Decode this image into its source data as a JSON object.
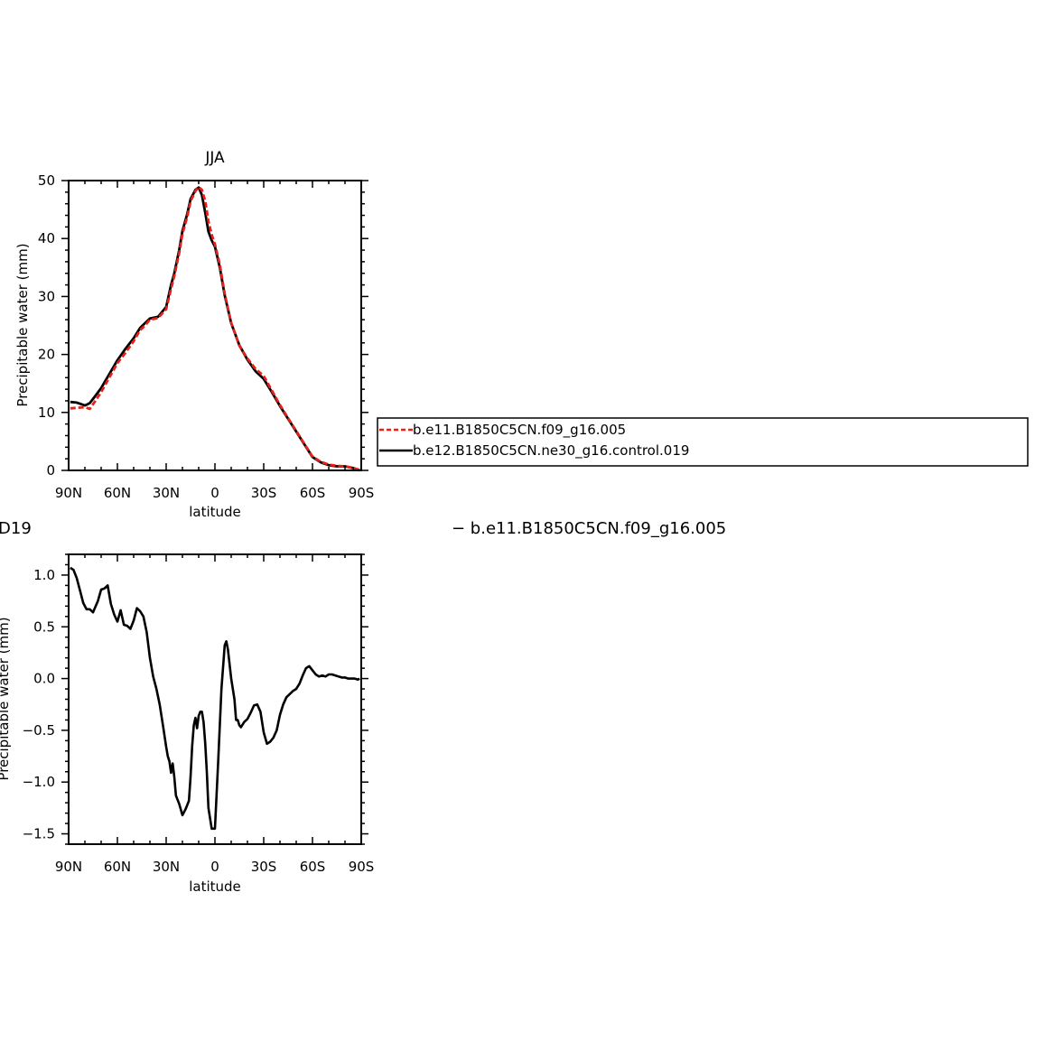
{
  "chart_data": [
    {
      "type": "line",
      "title": "JJA",
      "xlabel": "latitude",
      "ylabel": "Precipitable water (mm)",
      "xlim": [
        90,
        -90
      ],
      "ylim": [
        0,
        50
      ],
      "x_ticks": [
        90,
        60,
        30,
        0,
        -30,
        -60,
        -90
      ],
      "x_tick_labels": [
        "90N",
        "60N",
        "30N",
        "0",
        "30S",
        "60S",
        "90S"
      ],
      "y_ticks": [
        0,
        10,
        20,
        30,
        40,
        50
      ],
      "y_tick_labels": [
        "0",
        "10",
        "20",
        "30",
        "40",
        "50"
      ],
      "legend": {
        "placement": "right",
        "entries": [
          "b.e11.B1850C5CN.f09_g16.005",
          "b.e12.B1850C5CN.ne30_g16.control.019"
        ]
      },
      "series": [
        {
          "name": "b.e11.B1850C5CN.f09_g16.005",
          "color": "#e8201a",
          "dash": "dashed",
          "x": [
            89,
            85,
            80,
            77,
            74,
            70,
            65,
            60,
            55,
            50,
            46,
            43,
            40,
            35,
            30,
            27,
            25,
            22,
            20,
            17,
            15,
            12,
            10,
            8,
            6,
            4,
            2,
            0,
            -3,
            -6,
            -10,
            -15,
            -20,
            -25,
            -30,
            -35,
            -40,
            -45,
            -50,
            -55,
            -60,
            -65,
            -70,
            -75,
            -80,
            -85,
            -89
          ],
          "y": [
            10.7,
            10.8,
            10.9,
            10.6,
            11.8,
            13.5,
            16.0,
            18.5,
            20.3,
            22.3,
            24.2,
            25.0,
            26.0,
            26.3,
            27.8,
            31.3,
            33.5,
            37.5,
            40.8,
            43.8,
            46.4,
            48.2,
            48.9,
            48.4,
            46.5,
            43.0,
            40.7,
            39.0,
            35.5,
            30.5,
            25.5,
            21.5,
            19.3,
            17.5,
            16.3,
            13.8,
            11.3,
            9.0,
            6.8,
            4.6,
            2.4,
            1.5,
            1.0,
            0.8,
            0.7,
            0.4,
            0.1
          ]
        },
        {
          "name": "b.e12.B1850C5CN.ne30_g16.control.019",
          "color": "#000000",
          "dash": "solid",
          "x": [
            89,
            85,
            80,
            77,
            74,
            70,
            65,
            60,
            55,
            50,
            46,
            43,
            40,
            35,
            30,
            27,
            25,
            22,
            20,
            17,
            15,
            12,
            10,
            8,
            6,
            4,
            2,
            0,
            -3,
            -6,
            -10,
            -15,
            -20,
            -25,
            -30,
            -35,
            -40,
            -45,
            -50,
            -55,
            -60,
            -65,
            -70,
            -75,
            -80,
            -85,
            -89
          ],
          "y": [
            11.8,
            11.7,
            11.2,
            11.6,
            12.7,
            14.2,
            16.6,
            19.0,
            21.0,
            22.8,
            24.6,
            25.4,
            26.2,
            26.5,
            28.2,
            32.0,
            34.0,
            38.0,
            41.3,
            44.3,
            46.8,
            48.4,
            48.8,
            47.5,
            44.5,
            41.2,
            39.7,
            38.6,
            35.0,
            30.2,
            25.4,
            21.6,
            19.1,
            17.1,
            15.8,
            13.5,
            11.1,
            8.9,
            6.7,
            4.5,
            2.3,
            1.4,
            0.9,
            0.7,
            0.7,
            0.4,
            0.0
          ]
        }
      ]
    },
    {
      "type": "line",
      "title": "",
      "title_left_fragment": "D19",
      "title_right_fragment": "− b.e11.B1850C5CN.f09_g16.005",
      "xlabel": "latitude",
      "ylabel": "Precipitable water (mm)",
      "xlim": [
        90,
        -90
      ],
      "ylim": [
        -1.6,
        1.2
      ],
      "x_ticks": [
        90,
        60,
        30,
        0,
        -30,
        -60,
        -90
      ],
      "x_tick_labels": [
        "90N",
        "60N",
        "30N",
        "0",
        "30S",
        "60S",
        "90S"
      ],
      "y_ticks": [
        1.0,
        0.5,
        0.0,
        -0.5,
        -1.0,
        -1.5
      ],
      "y_tick_labels": [
        "1.0",
        "0.5",
        "0.0",
        "−0.5",
        "−1.0",
        "−1.5"
      ],
      "series": [
        {
          "color": "#000000",
          "dash": "solid",
          "x": [
            89,
            87,
            85,
            83,
            81,
            79,
            77,
            75,
            72,
            70,
            68,
            66,
            64,
            62,
            60,
            58,
            56,
            54,
            52,
            50,
            48,
            46,
            44,
            42,
            40,
            38,
            36,
            34,
            32,
            30,
            29,
            28,
            27,
            26,
            25,
            24,
            22,
            20,
            18,
            16,
            15,
            14,
            13,
            12,
            11,
            10,
            9,
            8,
            7,
            6,
            5,
            4,
            2,
            0,
            -2,
            -4,
            -6,
            -7,
            -8,
            -10,
            -12,
            -13,
            -14,
            -15,
            -16,
            -18,
            -20,
            -22,
            -24,
            -26,
            -28,
            -30,
            -32,
            -34,
            -36,
            -38,
            -40,
            -42,
            -44,
            -46,
            -48,
            -50,
            -52,
            -54,
            -56,
            -58,
            -60,
            -62,
            -64,
            -66,
            -68,
            -70,
            -72,
            -74,
            -76,
            -78,
            -80,
            -82,
            -84,
            -86,
            -88,
            -89
          ],
          "y": [
            1.07,
            1.05,
            0.97,
            0.85,
            0.73,
            0.67,
            0.67,
            0.64,
            0.75,
            0.86,
            0.87,
            0.9,
            0.72,
            0.62,
            0.55,
            0.66,
            0.52,
            0.51,
            0.48,
            0.56,
            0.68,
            0.65,
            0.6,
            0.45,
            0.2,
            0.02,
            -0.1,
            -0.25,
            -0.45,
            -0.66,
            -0.75,
            -0.8,
            -0.91,
            -0.82,
            -0.95,
            -1.13,
            -1.21,
            -1.32,
            -1.26,
            -1.18,
            -0.95,
            -0.65,
            -0.45,
            -0.38,
            -0.48,
            -0.36,
            -0.32,
            -0.32,
            -0.42,
            -0.62,
            -0.9,
            -1.25,
            -1.45,
            -1.45,
            -0.8,
            -0.1,
            0.32,
            0.36,
            0.28,
            0.0,
            -0.2,
            -0.4,
            -0.4,
            -0.45,
            -0.47,
            -0.42,
            -0.39,
            -0.33,
            -0.26,
            -0.25,
            -0.32,
            -0.52,
            -0.63,
            -0.61,
            -0.57,
            -0.5,
            -0.35,
            -0.25,
            -0.18,
            -0.15,
            -0.12,
            -0.1,
            -0.05,
            0.03,
            0.1,
            0.12,
            0.08,
            0.04,
            0.02,
            0.03,
            0.02,
            0.04,
            0.04,
            0.03,
            0.02,
            0.01,
            0.01,
            0.0,
            0.0,
            0.0,
            -0.01,
            0.0
          ]
        }
      ]
    }
  ]
}
